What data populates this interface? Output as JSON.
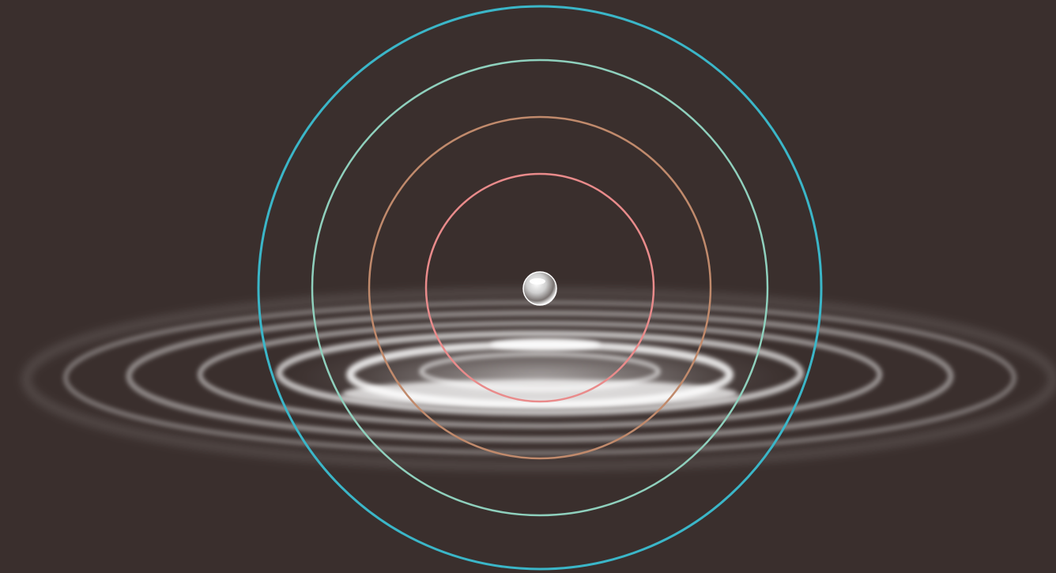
{
  "scene": {
    "description_label": "",
    "background_color": "#3a2f2d",
    "ripple_color": "#ffffff",
    "droplet_color": "#e8e8e8"
  },
  "rings": [
    {
      "name": "outer-ring",
      "color": "#3bb6c8"
    },
    {
      "name": "second-ring",
      "color": "#8fd0bd"
    },
    {
      "name": "third-ring",
      "color": "#c08a6c"
    },
    {
      "name": "inner-ring",
      "color": "#e98b8b"
    }
  ]
}
